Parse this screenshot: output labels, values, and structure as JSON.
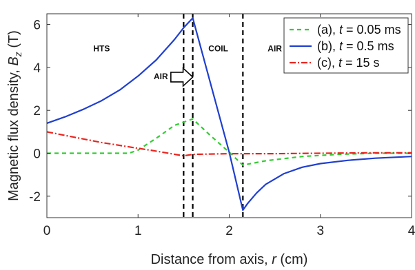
{
  "chart_data": {
    "type": "line",
    "xlabel": {
      "prefix": "Distance from axis, ",
      "var": "r",
      "suffix": " (cm)"
    },
    "ylabel": {
      "prefix": "Magnetic flux density, ",
      "var": "B",
      "sub": "z",
      "suffix": " (T)"
    },
    "xlim": [
      0,
      4
    ],
    "ylim": [
      -3,
      6.5
    ],
    "xticks": [
      0,
      1,
      2,
      3,
      4
    ],
    "yticks": [
      -2,
      0,
      2,
      4,
      6
    ],
    "grid": false,
    "legend_position": "top-right",
    "vlines": [
      1.5,
      1.6,
      2.15
    ],
    "region_labels": [
      {
        "text": "HTS",
        "x": 0.6,
        "y": 4.75
      },
      {
        "text": "AIR",
        "x": 1.25,
        "y": 3.45
      },
      {
        "text": "COIL",
        "x": 1.88,
        "y": 4.75
      },
      {
        "text": "AIR",
        "x": 2.5,
        "y": 4.75
      }
    ],
    "annotation_arrow": {
      "from": [
        1.36,
        3.55
      ],
      "to": [
        1.6,
        3.55
      ]
    },
    "series": [
      {
        "name": {
          "prefix": "(a), ",
          "var": "t",
          "suffix": " = 0.05 ms"
        },
        "color": "#33cc33",
        "dash": "6,5",
        "x": [
          0,
          0.9,
          1.0,
          1.2,
          1.4,
          1.6,
          1.8,
          2.0,
          2.15,
          2.4,
          2.8,
          3.2,
          3.6,
          4.0
        ],
        "y": [
          0,
          0,
          0.15,
          0.7,
          1.3,
          1.6,
          0.8,
          0.05,
          -0.55,
          -0.35,
          -0.15,
          -0.05,
          0,
          0
        ]
      },
      {
        "name": {
          "prefix": "(b), ",
          "var": "t",
          "suffix": " = 0.5 ms"
        },
        "color": "#1f3fcf",
        "dash": "",
        "x": [
          0,
          0.2,
          0.4,
          0.6,
          0.8,
          1.0,
          1.2,
          1.4,
          1.5,
          1.6,
          2.0,
          2.15,
          2.2,
          2.3,
          2.4,
          2.6,
          2.8,
          3.0,
          3.3,
          3.6,
          4.0
        ],
        "y": [
          1.4,
          1.7,
          2.05,
          2.45,
          2.95,
          3.6,
          4.35,
          5.3,
          5.85,
          6.3,
          0.05,
          -2.65,
          -2.35,
          -1.85,
          -1.45,
          -0.95,
          -0.65,
          -0.48,
          -0.33,
          -0.23,
          -0.15
        ]
      },
      {
        "name": {
          "prefix": "(c), ",
          "var": "t",
          "suffix": " = 15 s"
        },
        "color": "#e8251f",
        "dash": "9,3,2,3",
        "x": [
          0,
          0.3,
          0.6,
          0.9,
          1.2,
          1.5,
          1.6,
          2.0,
          2.5,
          3.0,
          3.5,
          4.0
        ],
        "y": [
          1.0,
          0.75,
          0.5,
          0.3,
          0.1,
          -0.12,
          -0.05,
          -0.02,
          -0.02,
          0,
          0.02,
          0.02
        ]
      }
    ]
  }
}
